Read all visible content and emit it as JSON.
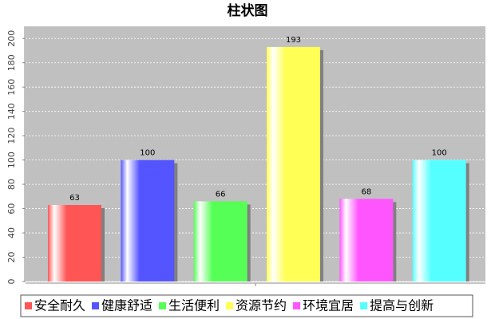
{
  "chart_data": {
    "type": "bar",
    "title": "柱状图",
    "categories": [
      null
    ],
    "series": [
      {
        "name": "安全耐久",
        "color": "#ff5555",
        "values": [
          63
        ]
      },
      {
        "name": "健康舒适",
        "color": "#5555ff",
        "values": [
          100
        ]
      },
      {
        "name": "生活便利",
        "color": "#55ff55",
        "values": [
          66
        ]
      },
      {
        "name": "资源节约",
        "color": "#ffff55",
        "values": [
          193
        ]
      },
      {
        "name": "环境宜居",
        "color": "#ff55ff",
        "values": [
          68
        ]
      },
      {
        "name": "提高与创新",
        "color": "#55ffff",
        "values": [
          100
        ]
      }
    ],
    "ylim": [
      0,
      210
    ],
    "yticks": [
      0,
      20,
      40,
      60,
      80,
      100,
      120,
      140,
      160,
      180,
      200
    ],
    "grid": true,
    "legend": "bottom"
  }
}
